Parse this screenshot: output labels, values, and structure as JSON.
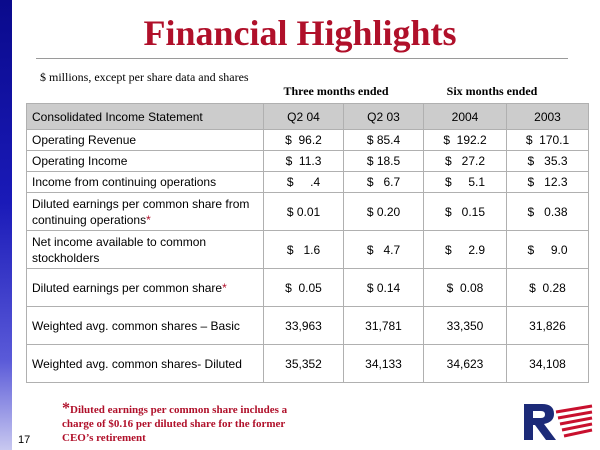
{
  "slide": {
    "title": "Financial Highlights",
    "subtitle": "$ millions, except per share data and shares",
    "page_number": "17"
  },
  "periods": {
    "three_months": "Three months ended",
    "six_months": "Six months ended"
  },
  "table": {
    "headers": [
      "Consolidated Income Statement",
      "Q2 04",
      "Q2 03",
      "2004",
      "2003"
    ],
    "rows": [
      {
        "label": "Operating Revenue",
        "values": [
          "$  96.2",
          "$ 85.4",
          "$  192.2",
          "$  170.1"
        ]
      },
      {
        "label": "Operating Income",
        "values": [
          "$  11.3",
          "$ 18.5",
          "$   27.2",
          "$   35.3"
        ]
      },
      {
        "label": "Income from continuing operations",
        "values": [
          "$     .4",
          "$   6.7",
          "$     5.1",
          "$   12.3"
        ]
      },
      {
        "label": "Diluted earnings per common share from continuing operations",
        "mark": "*",
        "values": [
          "$ 0.01",
          "$ 0.20",
          "$   0.15",
          "$   0.38"
        ]
      },
      {
        "label": "Net income available to common stockholders",
        "values": [
          "$   1.6",
          "$   4.7",
          "$     2.9",
          "$     9.0"
        ]
      },
      {
        "label": "Diluted earnings per common share",
        "mark": "*",
        "values": [
          "$  0.05",
          "$ 0.14",
          "$  0.08",
          "$  0.28"
        ]
      },
      {
        "label": "Weighted avg. common shares – Basic",
        "values": [
          "33,963",
          "31,781",
          "33,350",
          "31,826"
        ]
      },
      {
        "label": "Weighted avg. common shares- Diluted",
        "values": [
          "35,352",
          "34,133",
          "34,623",
          "34,108"
        ]
      }
    ]
  },
  "footnote": {
    "star": "*",
    "text": "Diluted earnings per common share includes a   charge of $0.16 per diluted share for the former CEO’s retirement"
  },
  "logo": {
    "icon": "company-logo-icon",
    "colors": {
      "blue": "#1c2a78",
      "red": "#c8102e"
    }
  },
  "colors": {
    "title": "#b0102a",
    "header_background": "#cccccc",
    "left_bar": "#1a1ab8"
  }
}
